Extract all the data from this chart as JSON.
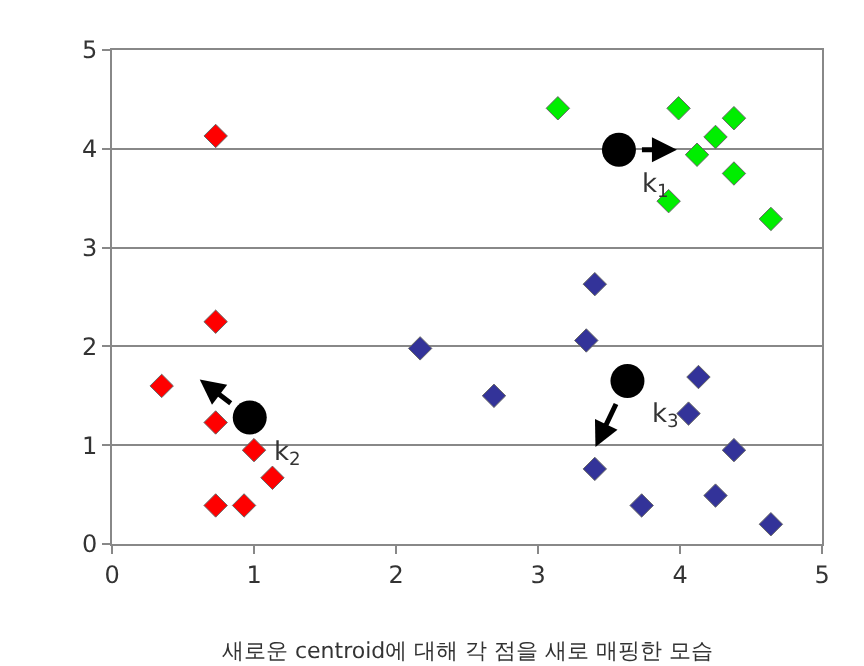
{
  "chart_data": {
    "type": "scatter",
    "xlim": [
      0,
      5
    ],
    "ylim": [
      0,
      5
    ],
    "xticks": [
      0,
      1,
      2,
      3,
      4,
      5
    ],
    "yticks": [
      0,
      1,
      2,
      3,
      4,
      5
    ],
    "grid": "y",
    "marker": "diamond",
    "series": [
      {
        "color": "#ff0000",
        "x": [
          0.73,
          0.73,
          0.35,
          0.73,
          1.0,
          1.13,
          0.73,
          0.93
        ],
        "values": [
          4.13,
          2.25,
          1.6,
          1.23,
          0.95,
          0.67,
          0.39,
          0.39
        ]
      },
      {
        "color": "#333399",
        "x": [
          2.17,
          2.69,
          3.34,
          3.4,
          4.13,
          4.06,
          4.38,
          3.4,
          3.73,
          4.25,
          4.64
        ],
        "values": [
          1.98,
          1.5,
          2.06,
          2.63,
          1.69,
          1.32,
          0.95,
          0.76,
          0.39,
          0.49,
          0.2
        ]
      },
      {
        "color": "#00ee00",
        "x": [
          3.14,
          3.99,
          4.38,
          4.25,
          4.12,
          4.38,
          3.92,
          4.64
        ],
        "values": [
          4.41,
          4.41,
          4.31,
          4.12,
          3.94,
          3.75,
          3.47,
          3.29
        ]
      },
      {
        "color": "#000000",
        "marker": "circle",
        "x": [
          3.57,
          0.97,
          3.63
        ],
        "values": [
          3.99,
          1.28,
          1.65
        ]
      }
    ],
    "annotations": [
      {
        "text": "k$_{1}$",
        "x": 3.57,
        "y": 3.99
      },
      {
        "text": "k$_{2}$",
        "x": 0.97,
        "y": 1.28
      },
      {
        "text": "k$_{3}$",
        "x": 3.63,
        "y": 1.65
      },
      "새로운 centroid에 대해 각 점을 새로 매핑한 모습"
    ]
  }
}
